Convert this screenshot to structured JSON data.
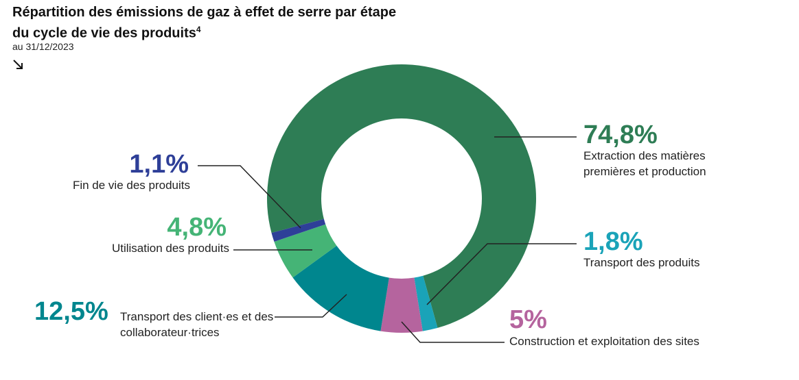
{
  "chart_data": {
    "type": "donut",
    "title": "Répartition des émissions de gaz à effet de serre par étape du cycle de vie des produits",
    "title_note": "4",
    "subtitle": "au 31/12/2023",
    "categories": [
      "Extraction des matières premières et production",
      "Transport des produits",
      "Construction et exploitation des sites",
      "Transport des client·es et des collaborateur·trices",
      "Utilisation des produits",
      "Fin de vie des produits"
    ],
    "values": [
      74.8,
      1.8,
      5,
      12.5,
      4.8,
      1.1
    ],
    "value_labels": [
      "74,8%",
      "1,8%",
      "5%",
      "12,5%",
      "4,8%",
      "1,1%"
    ],
    "colors": [
      "#2e7d55",
      "#1aa3b8",
      "#b5649e",
      "#00868e",
      "#45b476",
      "#2e3f98"
    ]
  }
}
